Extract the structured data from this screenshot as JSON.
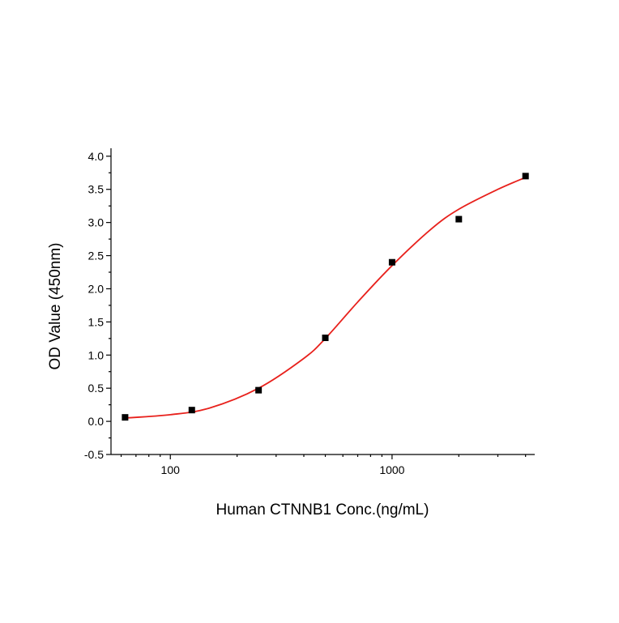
{
  "chart_data": {
    "type": "scatter",
    "xlabel": "Human CTNNB1 Conc.(ng/mL)",
    "ylabel": "OD Value (450nm)",
    "xscale": "log",
    "xlim": [
      54,
      4400
    ],
    "xticks": [
      100,
      1000
    ],
    "xminorticks": [
      60,
      70,
      80,
      90,
      200,
      300,
      400,
      500,
      600,
      700,
      800,
      900,
      2000,
      3000,
      4000
    ],
    "ylim": [
      -0.5,
      4.12
    ],
    "yticks": [
      -0.5,
      {
        "value": 0,
        "label": "0.0"
      },
      0.5,
      {
        "value": 1,
        "label": "1.0"
      },
      1.5,
      {
        "value": 2,
        "label": "2.0"
      },
      2.5,
      {
        "value": 3,
        "label": "3.0"
      },
      3.5,
      {
        "value": 4,
        "label": "4.0"
      }
    ],
    "yminorticks": [
      -0.25,
      0.25,
      0.75,
      1.25,
      1.75,
      2.25,
      2.75,
      3.25,
      3.75
    ],
    "series": [
      {
        "type": "scatter",
        "color": "#000000",
        "marker": "square",
        "x": [
          62.5,
          125,
          250,
          500,
          1000,
          2000,
          4000
        ],
        "values": [
          0.06,
          0.17,
          0.47,
          1.26,
          2.4,
          3.05,
          3.7
        ]
      },
      {
        "type": "line",
        "color": "#e8211c",
        "x": [
          62.5,
          100,
          150,
          250,
          400,
          500,
          700,
          1000,
          1500,
          2000,
          3000,
          4000
        ],
        "values": [
          0.05,
          0.1,
          0.2,
          0.5,
          0.95,
          1.25,
          1.8,
          2.35,
          2.9,
          3.2,
          3.5,
          3.68
        ]
      }
    ]
  }
}
